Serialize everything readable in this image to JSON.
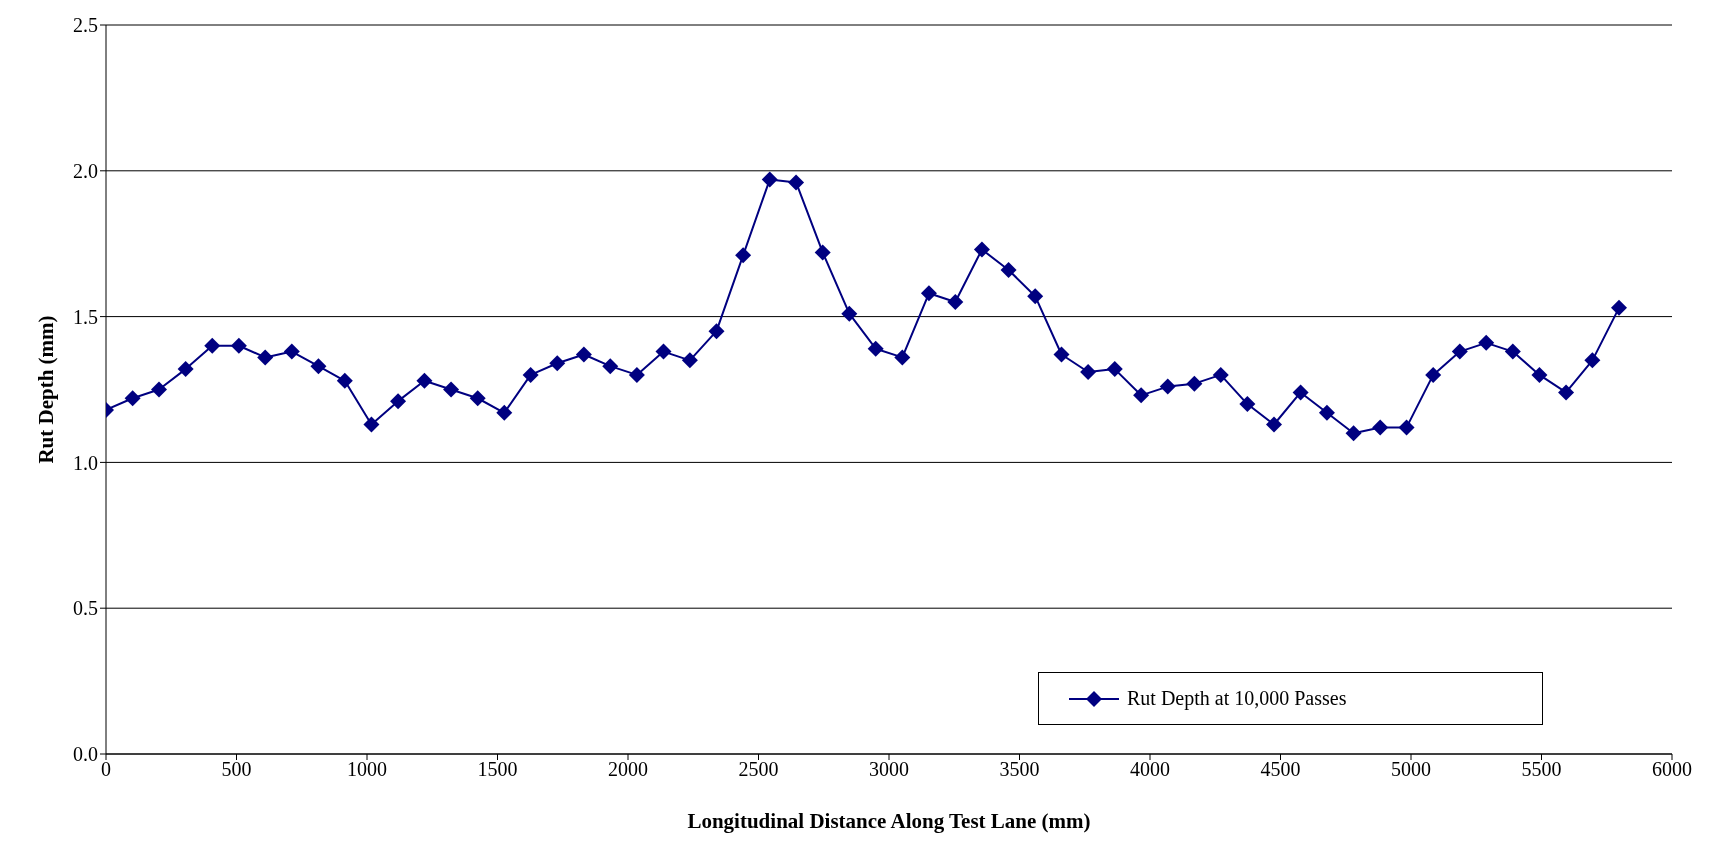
{
  "chart_data": {
    "type": "line",
    "xlabel": "Longitudinal Distance Along Test Lane (mm)",
    "ylabel": "Rut Depth (mm)",
    "x": [
      0,
      102,
      203,
      305,
      407,
      509,
      610,
      712,
      814,
      915,
      1017,
      1119,
      1220,
      1322,
      1424,
      1526,
      1627,
      1729,
      1831,
      1932,
      2034,
      2136,
      2237,
      2339,
      2441,
      2543,
      2644,
      2746,
      2848,
      2949,
      3051,
      3153,
      3254,
      3356,
      3458,
      3560,
      3661,
      3763,
      3865,
      3966,
      4068,
      4170,
      4271,
      4373,
      4475,
      4577,
      4678,
      4780,
      4882,
      4983,
      5085,
      5187,
      5288,
      5390,
      5492,
      5594,
      5695,
      5797
    ],
    "series": [
      {
        "name": "Rut Depth at 10,000 Passes",
        "color": "#000080",
        "values": [
          1.18,
          1.22,
          1.25,
          1.32,
          1.4,
          1.4,
          1.36,
          1.38,
          1.33,
          1.28,
          1.13,
          1.21,
          1.28,
          1.25,
          1.22,
          1.17,
          1.3,
          1.34,
          1.37,
          1.33,
          1.3,
          1.38,
          1.35,
          1.45,
          1.71,
          1.97,
          1.96,
          1.72,
          1.51,
          1.39,
          1.36,
          1.58,
          1.55,
          1.73,
          1.66,
          1.57,
          1.37,
          1.31,
          1.32,
          1.23,
          1.26,
          1.27,
          1.3,
          1.2,
          1.13,
          1.24,
          1.17,
          1.1,
          1.12,
          1.12,
          1.3,
          1.38,
          1.41,
          1.38,
          1.3,
          1.24,
          1.35,
          1.53
        ]
      }
    ],
    "xlim": [
      0,
      6000
    ],
    "xticks": [
      0,
      500,
      1000,
      1500,
      2000,
      2500,
      3000,
      3500,
      4000,
      4500,
      5000,
      5500,
      6000
    ],
    "ylim": [
      0,
      2.5
    ],
    "yticks": [
      {
        "value": 0,
        "label": "0.0"
      },
      {
        "value": 0.5,
        "label": "0.5"
      },
      {
        "value": 1,
        "label": "1.0"
      },
      {
        "value": 1.5,
        "label": "1.5"
      },
      {
        "value": 2,
        "label": "2.0"
      },
      {
        "value": 2.5,
        "label": "2.5"
      }
    ],
    "grid": "y",
    "legend": "bottom right",
    "marker": "diamond",
    "line_style": "solid"
  }
}
